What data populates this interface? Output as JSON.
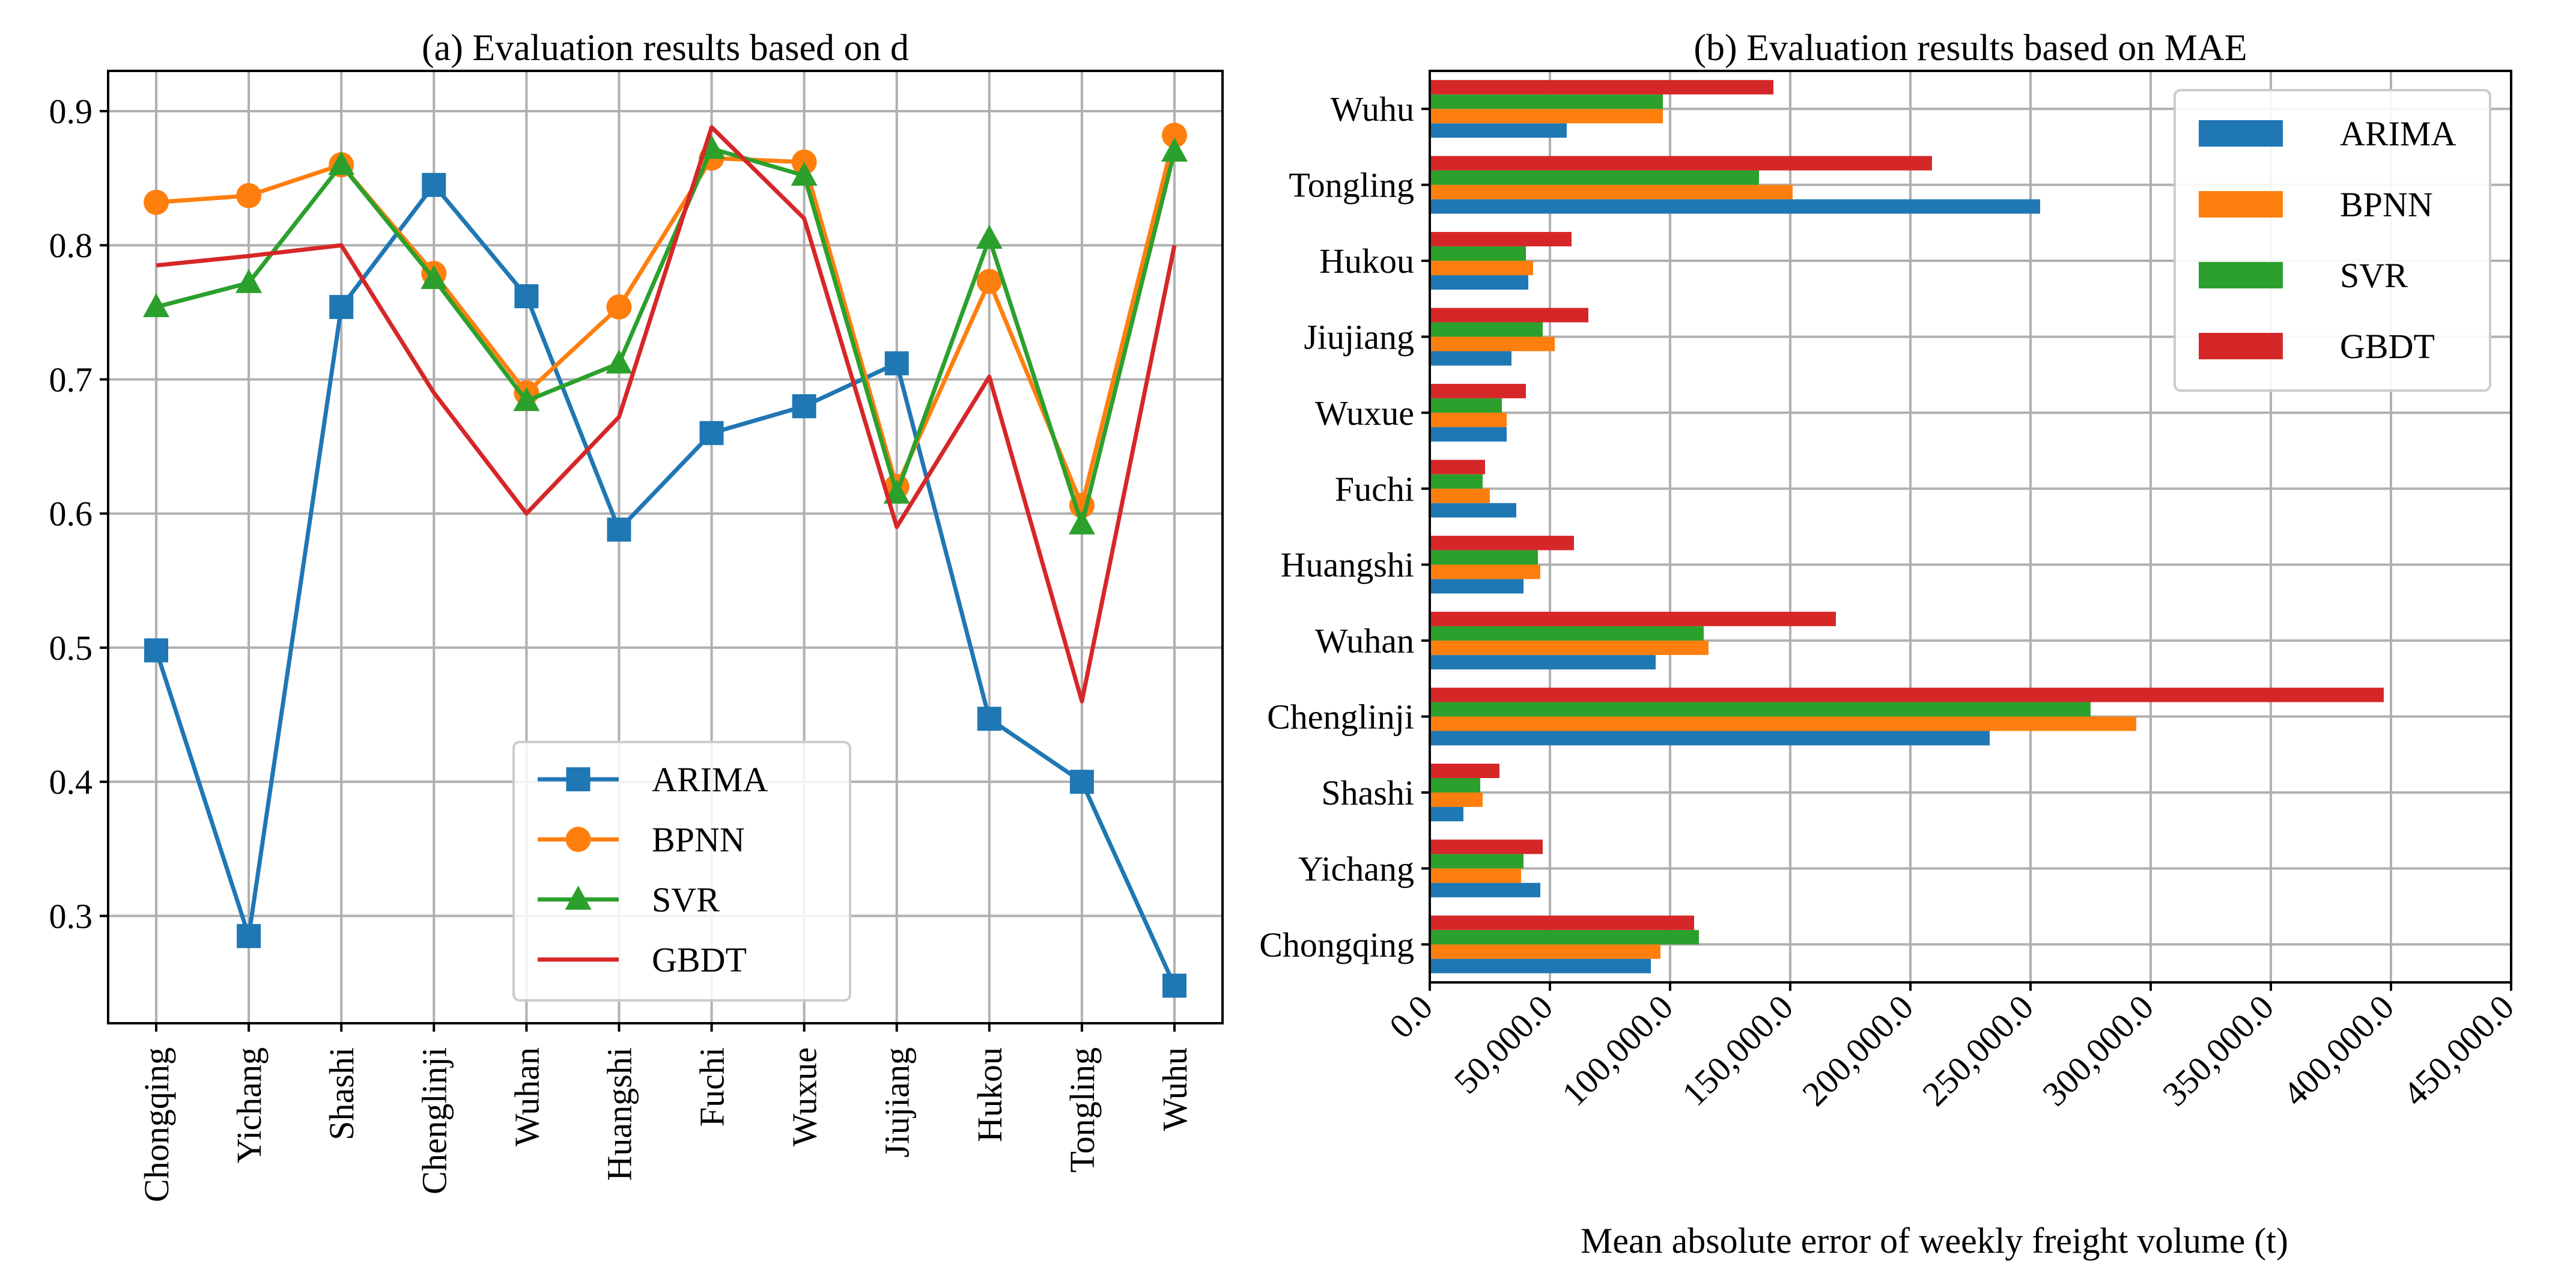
{
  "colors": {
    "ARIMA": "#1f77b4",
    "BPNN": "#ff7f0e",
    "SVR": "#2ca02c",
    "GBDT": "#d62728"
  },
  "chart_data": [
    {
      "type": "line",
      "title": "(a) Evaluation results based on d",
      "xlabel": "",
      "ylabel": "",
      "ylim": [
        0.22,
        0.93
      ],
      "yticks": [
        0.3,
        0.4,
        0.5,
        0.6,
        0.7,
        0.8,
        0.9
      ],
      "ytick_labels": [
        "0.3",
        "0.4",
        "0.5",
        "0.6",
        "0.7",
        "0.8",
        "0.9"
      ],
      "grid": true,
      "legend": "lower-center",
      "categories": [
        "Chongqing",
        "Yichang",
        "Shashi",
        "Chenglinji",
        "Wuhan",
        "Huangshi",
        "Fuchi",
        "Wuxue",
        "Jiujiang",
        "Hukou",
        "Tongling",
        "Wuhu"
      ],
      "series": [
        {
          "name": "ARIMA",
          "marker": "square",
          "values": [
            0.498,
            0.285,
            0.754,
            0.845,
            0.762,
            0.588,
            0.66,
            0.68,
            0.712,
            0.447,
            0.4,
            0.248
          ]
        },
        {
          "name": "BPNN",
          "marker": "circle",
          "values": [
            0.832,
            0.837,
            0.86,
            0.779,
            0.69,
            0.754,
            0.865,
            0.862,
            0.62,
            0.773,
            0.606,
            0.882
          ]
        },
        {
          "name": "SVR",
          "marker": "triangle",
          "values": [
            0.754,
            0.772,
            0.86,
            0.775,
            0.684,
            0.712,
            0.872,
            0.852,
            0.615,
            0.805,
            0.592,
            0.87
          ]
        },
        {
          "name": "GBDT",
          "marker": "none",
          "values": [
            0.785,
            0.792,
            0.8,
            0.69,
            0.6,
            0.672,
            0.888,
            0.82,
            0.59,
            0.702,
            0.46,
            0.8
          ]
        }
      ]
    },
    {
      "type": "bar",
      "orientation": "horizontal",
      "title": "(b) Evaluation results based on MAE",
      "xlabel": "Mean absolute error of weekly freight volume (t)",
      "ylabel": "",
      "xlim": [
        0,
        450000
      ],
      "xticks": [
        0,
        50000,
        100000,
        150000,
        200000,
        250000,
        300000,
        350000,
        400000,
        450000
      ],
      "xtick_labels": [
        "0.0",
        "50,000.0",
        "100,000.0",
        "150,000.0",
        "200,000.0",
        "250,000.0",
        "300,000.0",
        "350,000.0",
        "400,000.0",
        "450,000.0"
      ],
      "grid": true,
      "legend": "top-right",
      "categories": [
        "Chongqing",
        "Yichang",
        "Shashi",
        "Chenglinji",
        "Wuhan",
        "Huangshi",
        "Fuchi",
        "Wuxue",
        "Jiujiang",
        "Hukou",
        "Tongling",
        "Wuhu"
      ],
      "series": [
        {
          "name": "ARIMA",
          "values": [
            92000,
            46000,
            14000,
            233000,
            94000,
            39000,
            36000,
            32000,
            34000,
            41000,
            254000,
            57000
          ]
        },
        {
          "name": "BPNN",
          "values": [
            96000,
            38000,
            22000,
            294000,
            116000,
            46000,
            25000,
            32000,
            52000,
            43000,
            151000,
            97000
          ]
        },
        {
          "name": "SVR",
          "values": [
            112000,
            39000,
            21000,
            275000,
            114000,
            45000,
            22000,
            30000,
            47000,
            40000,
            137000,
            97000
          ]
        },
        {
          "name": "GBDT",
          "values": [
            110000,
            47000,
            29000,
            397000,
            169000,
            60000,
            23000,
            40000,
            66000,
            59000,
            209000,
            143000
          ]
        }
      ]
    }
  ]
}
